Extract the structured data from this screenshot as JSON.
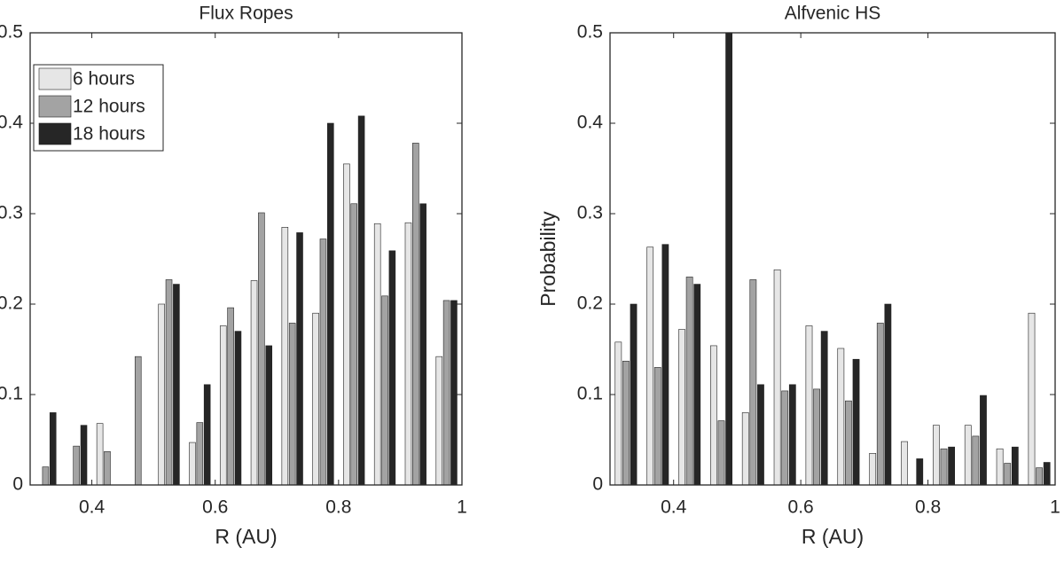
{
  "chart_data": [
    {
      "type": "bar",
      "title": "Flux Ropes",
      "xlabel": "R (AU)",
      "x": [
        0.325,
        0.375,
        0.425,
        0.475,
        0.525,
        0.575,
        0.625,
        0.675,
        0.725,
        0.775,
        0.825,
        0.875,
        0.925,
        0.975
      ],
      "series": [
        {
          "name": "6 hours",
          "color": "#e6e6e6",
          "values": [
            0,
            0,
            0.068,
            0,
            0.2,
            0.047,
            0.176,
            0.226,
            0.285,
            0.19,
            0.355,
            0.289,
            0.29,
            0.142
          ]
        },
        {
          "name": "12 hours",
          "color": "#a3a3a3",
          "values": [
            0.02,
            0.043,
            0.037,
            0.142,
            0.227,
            0.069,
            0.196,
            0.301,
            0.179,
            0.272,
            0.311,
            0.209,
            0.378,
            0.204
          ]
        },
        {
          "name": "18 hours",
          "color": "#262626",
          "values": [
            0.08,
            0.066,
            0,
            0,
            0.222,
            0.111,
            0.17,
            0.154,
            0.279,
            0.4,
            0.408,
            0.259,
            0.311,
            0.204
          ]
        }
      ],
      "xlim": [
        0.3,
        1
      ],
      "ylim": [
        0,
        0.5
      ],
      "xticks": [
        0.4,
        0.6,
        0.8,
        1
      ],
      "yticks": [
        0,
        0.1,
        0.2,
        0.3,
        0.4,
        0.5
      ],
      "legend": "upper left"
    },
    {
      "type": "bar",
      "title": "Alfvenic HS",
      "xlabel": "R (AU)",
      "ylabel": "Probability",
      "x": [
        0.325,
        0.375,
        0.425,
        0.475,
        0.525,
        0.575,
        0.625,
        0.675,
        0.725,
        0.775,
        0.825,
        0.875,
        0.925,
        0.975
      ],
      "series": [
        {
          "name": "6 hours",
          "color": "#e6e6e6",
          "values": [
            0.158,
            0.263,
            0.172,
            0.154,
            0.08,
            0.238,
            0.176,
            0.151,
            0.035,
            0.048,
            0.066,
            0.066,
            0.04,
            0.19
          ]
        },
        {
          "name": "12 hours",
          "color": "#a3a3a3",
          "values": [
            0.137,
            0.13,
            0.23,
            0.071,
            0.227,
            0.104,
            0.106,
            0.093,
            0.179,
            0,
            0.04,
            0.054,
            0.024,
            0.019
          ]
        },
        {
          "name": "18 hours",
          "color": "#262626",
          "values": [
            0.2,
            0.266,
            0.222,
            0.5,
            0.111,
            0.111,
            0.17,
            0.139,
            0.2,
            0.029,
            0.042,
            0.099,
            0.042,
            0.025
          ]
        }
      ],
      "xlim": [
        0.3,
        1
      ],
      "ylim": [
        0,
        0.5
      ],
      "xticks": [
        0.4,
        0.6,
        0.8,
        1
      ],
      "yticks": [
        0,
        0.1,
        0.2,
        0.3,
        0.4,
        0.5
      ]
    }
  ]
}
